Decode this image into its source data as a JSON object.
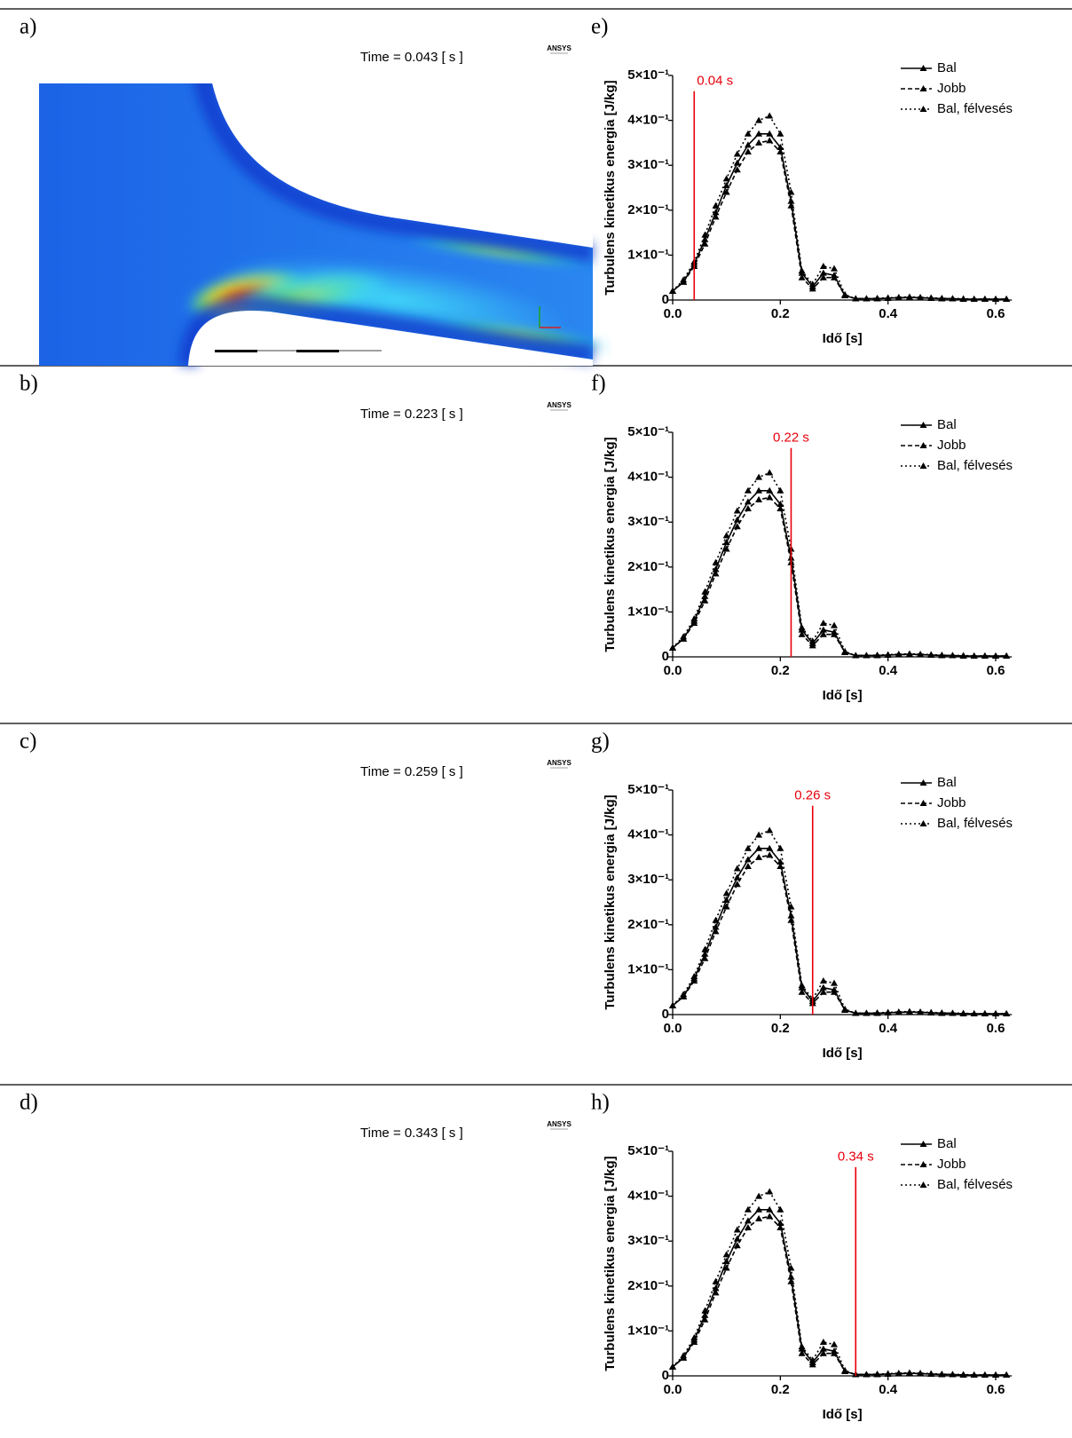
{
  "panel_labels": {
    "left": [
      "a)",
      "b)",
      "c)",
      "d)"
    ],
    "right": [
      "e)",
      "f)",
      "g)",
      "h)"
    ]
  },
  "simulations": [
    {
      "time_label": "Time = 0.043 [ s ]",
      "logo": "ANSYS"
    },
    {
      "time_label": "Time = 0.223 [ s ]",
      "logo": "ANSYS"
    },
    {
      "time_label": "Time = 0.259 [ s ]",
      "logo": "ANSYS"
    },
    {
      "time_label": "Time = 0.343 [ s ]",
      "logo": "ANSYS"
    }
  ],
  "chart_data": [
    {
      "type": "line",
      "xlabel": "Idő [s]",
      "ylabel": "Turbulens kinetikus energia [J/kg]",
      "legend": "upper right",
      "marker": "triangle",
      "xlim": [
        0,
        0.63
      ],
      "ylim": [
        0,
        0.5
      ],
      "xticks": [
        {
          "value": 0,
          "label": "0.0"
        },
        0.2,
        0.4,
        0.6
      ],
      "yticks": [
        0,
        {
          "value": 0.1,
          "label": "1×10⁻¹"
        },
        {
          "value": 0.2,
          "label": "2×10⁻¹"
        },
        {
          "value": 0.3,
          "label": "3×10⁻¹"
        },
        {
          "value": 0.4,
          "label": "4×10⁻¹"
        },
        {
          "value": 0.5,
          "label": "5×10⁻¹"
        }
      ],
      "reference_line": {
        "x": 0.04,
        "label": "0.04 s",
        "color": "#e8000b"
      },
      "x": [
        0,
        0.02,
        0.04,
        0.06,
        0.08,
        0.1,
        0.12,
        0.14,
        0.16,
        0.18,
        0.2,
        0.22,
        0.24,
        0.26,
        0.28,
        0.3,
        0.32,
        0.34,
        0.36,
        0.38,
        0.4,
        0.42,
        0.44,
        0.46,
        0.48,
        0.5,
        0.52,
        0.54,
        0.56,
        0.58,
        0.6,
        0.62
      ],
      "series": [
        {
          "name": "Bal",
          "color": "#000000",
          "style": "solid",
          "values": [
            0.02,
            0.04,
            0.08,
            0.135,
            0.195,
            0.255,
            0.305,
            0.345,
            0.37,
            0.37,
            0.34,
            0.22,
            0.06,
            0.03,
            0.06,
            0.055,
            0.01,
            0.003,
            0.003,
            0.003,
            0.004,
            0.005,
            0.006,
            0.005,
            0.004,
            0.003,
            0.003,
            0.002,
            0.002,
            0.002,
            0.002,
            0.002
          ]
        },
        {
          "name": "Jobb",
          "color": "#000000",
          "style": "dashed",
          "values": [
            0.02,
            0.04,
            0.075,
            0.125,
            0.185,
            0.24,
            0.29,
            0.33,
            0.35,
            0.355,
            0.33,
            0.21,
            0.05,
            0.025,
            0.05,
            0.05,
            0.01,
            0.003,
            0.003,
            0.003,
            0.004,
            0.005,
            0.005,
            0.005,
            0.004,
            0.003,
            0.003,
            0.002,
            0.002,
            0.002,
            0.002,
            0.002
          ]
        },
        {
          "name": "Bal, félvesés",
          "color": "#000000",
          "style": "dotted",
          "values": [
            0.02,
            0.045,
            0.085,
            0.145,
            0.21,
            0.27,
            0.325,
            0.37,
            0.4,
            0.41,
            0.37,
            0.24,
            0.065,
            0.035,
            0.075,
            0.07,
            0.012,
            0.003,
            0.003,
            0.004,
            0.005,
            0.006,
            0.007,
            0.006,
            0.005,
            0.004,
            0.003,
            0.003,
            0.002,
            0.002,
            0.002,
            0.002
          ]
        }
      ]
    },
    {
      "type": "line",
      "xlabel": "Idő [s]",
      "ylabel": "Turbulens kinetikus energia [J/kg]",
      "legend": "upper right",
      "marker": "triangle",
      "xlim": [
        0,
        0.63
      ],
      "ylim": [
        0,
        0.5
      ],
      "xticks": [
        {
          "value": 0,
          "label": "0.0"
        },
        0.2,
        0.4,
        0.6
      ],
      "yticks": [
        0,
        {
          "value": 0.1,
          "label": "1×10⁻¹"
        },
        {
          "value": 0.2,
          "label": "2×10⁻¹"
        },
        {
          "value": 0.3,
          "label": "3×10⁻¹"
        },
        {
          "value": 0.4,
          "label": "4×10⁻¹"
        },
        {
          "value": 0.5,
          "label": "5×10⁻¹"
        }
      ],
      "reference_line": {
        "x": 0.22,
        "label": "0.22 s",
        "color": "#e8000b"
      },
      "x": [
        0,
        0.02,
        0.04,
        0.06,
        0.08,
        0.1,
        0.12,
        0.14,
        0.16,
        0.18,
        0.2,
        0.22,
        0.24,
        0.26,
        0.28,
        0.3,
        0.32,
        0.34,
        0.36,
        0.38,
        0.4,
        0.42,
        0.44,
        0.46,
        0.48,
        0.5,
        0.52,
        0.54,
        0.56,
        0.58,
        0.6,
        0.62
      ],
      "series": [
        {
          "name": "Bal",
          "color": "#000000",
          "style": "solid",
          "values": [
            0.02,
            0.04,
            0.08,
            0.135,
            0.195,
            0.255,
            0.305,
            0.345,
            0.37,
            0.37,
            0.34,
            0.22,
            0.06,
            0.03,
            0.06,
            0.055,
            0.01,
            0.003,
            0.003,
            0.003,
            0.004,
            0.005,
            0.006,
            0.005,
            0.004,
            0.003,
            0.003,
            0.002,
            0.002,
            0.002,
            0.002,
            0.002
          ]
        },
        {
          "name": "Jobb",
          "color": "#000000",
          "style": "dashed",
          "values": [
            0.02,
            0.04,
            0.075,
            0.125,
            0.185,
            0.24,
            0.29,
            0.33,
            0.35,
            0.355,
            0.33,
            0.21,
            0.05,
            0.025,
            0.05,
            0.05,
            0.01,
            0.003,
            0.003,
            0.003,
            0.004,
            0.005,
            0.005,
            0.005,
            0.004,
            0.003,
            0.003,
            0.002,
            0.002,
            0.002,
            0.002,
            0.002
          ]
        },
        {
          "name": "Bal, félvesés",
          "color": "#000000",
          "style": "dotted",
          "values": [
            0.02,
            0.045,
            0.085,
            0.145,
            0.21,
            0.27,
            0.325,
            0.37,
            0.4,
            0.41,
            0.37,
            0.24,
            0.065,
            0.035,
            0.075,
            0.07,
            0.012,
            0.003,
            0.003,
            0.004,
            0.005,
            0.006,
            0.007,
            0.006,
            0.005,
            0.004,
            0.003,
            0.003,
            0.002,
            0.002,
            0.002,
            0.002
          ]
        }
      ]
    },
    {
      "type": "line",
      "xlabel": "Idő [s]",
      "ylabel": "Turbulens kinetikus energia [J/kg]",
      "legend": "upper right",
      "marker": "triangle",
      "xlim": [
        0,
        0.63
      ],
      "ylim": [
        0,
        0.5
      ],
      "xticks": [
        {
          "value": 0,
          "label": "0.0"
        },
        0.2,
        0.4,
        0.6
      ],
      "yticks": [
        0,
        {
          "value": 0.1,
          "label": "1×10⁻¹"
        },
        {
          "value": 0.2,
          "label": "2×10⁻¹"
        },
        {
          "value": 0.3,
          "label": "3×10⁻¹"
        },
        {
          "value": 0.4,
          "label": "4×10⁻¹"
        },
        {
          "value": 0.5,
          "label": "5×10⁻¹"
        }
      ],
      "reference_line": {
        "x": 0.26,
        "label": "0.26 s",
        "color": "#e8000b"
      },
      "x": [
        0,
        0.02,
        0.04,
        0.06,
        0.08,
        0.1,
        0.12,
        0.14,
        0.16,
        0.18,
        0.2,
        0.22,
        0.24,
        0.26,
        0.28,
        0.3,
        0.32,
        0.34,
        0.36,
        0.38,
        0.4,
        0.42,
        0.44,
        0.46,
        0.48,
        0.5,
        0.52,
        0.54,
        0.56,
        0.58,
        0.6,
        0.62
      ],
      "series": [
        {
          "name": "Bal",
          "color": "#000000",
          "style": "solid",
          "values": [
            0.02,
            0.04,
            0.08,
            0.135,
            0.195,
            0.255,
            0.305,
            0.345,
            0.37,
            0.37,
            0.34,
            0.22,
            0.06,
            0.03,
            0.06,
            0.055,
            0.01,
            0.003,
            0.003,
            0.003,
            0.004,
            0.005,
            0.006,
            0.005,
            0.004,
            0.003,
            0.003,
            0.002,
            0.002,
            0.002,
            0.002,
            0.002
          ]
        },
        {
          "name": "Jobb",
          "color": "#000000",
          "style": "dashed",
          "values": [
            0.02,
            0.04,
            0.075,
            0.125,
            0.185,
            0.24,
            0.29,
            0.33,
            0.35,
            0.355,
            0.33,
            0.21,
            0.05,
            0.025,
            0.05,
            0.05,
            0.01,
            0.003,
            0.003,
            0.003,
            0.004,
            0.005,
            0.005,
            0.005,
            0.004,
            0.003,
            0.003,
            0.002,
            0.002,
            0.002,
            0.002,
            0.002
          ]
        },
        {
          "name": "Bal, félvesés",
          "color": "#000000",
          "style": "dotted",
          "values": [
            0.02,
            0.045,
            0.085,
            0.145,
            0.21,
            0.27,
            0.325,
            0.37,
            0.4,
            0.41,
            0.37,
            0.24,
            0.065,
            0.035,
            0.075,
            0.07,
            0.012,
            0.003,
            0.003,
            0.004,
            0.005,
            0.006,
            0.007,
            0.006,
            0.005,
            0.004,
            0.003,
            0.003,
            0.002,
            0.002,
            0.002,
            0.002
          ]
        }
      ]
    },
    {
      "type": "line",
      "xlabel": "Idő [s]",
      "ylabel": "Turbulens kinetikus energia [J/kg]",
      "legend": "upper right",
      "marker": "triangle",
      "xlim": [
        0,
        0.63
      ],
      "ylim": [
        0,
        0.5
      ],
      "xticks": [
        {
          "value": 0,
          "label": "0.0"
        },
        0.2,
        0.4,
        0.6
      ],
      "yticks": [
        0,
        {
          "value": 0.1,
          "label": "1×10⁻¹"
        },
        {
          "value": 0.2,
          "label": "2×10⁻¹"
        },
        {
          "value": 0.3,
          "label": "3×10⁻¹"
        },
        {
          "value": 0.4,
          "label": "4×10⁻¹"
        },
        {
          "value": 0.5,
          "label": "5×10⁻¹"
        }
      ],
      "reference_line": {
        "x": 0.34,
        "label": "0.34 s",
        "color": "#e8000b"
      },
      "x": [
        0,
        0.02,
        0.04,
        0.06,
        0.08,
        0.1,
        0.12,
        0.14,
        0.16,
        0.18,
        0.2,
        0.22,
        0.24,
        0.26,
        0.28,
        0.3,
        0.32,
        0.34,
        0.36,
        0.38,
        0.4,
        0.42,
        0.44,
        0.46,
        0.48,
        0.5,
        0.52,
        0.54,
        0.56,
        0.58,
        0.6,
        0.62
      ],
      "series": [
        {
          "name": "Bal",
          "color": "#000000",
          "style": "solid",
          "values": [
            0.02,
            0.04,
            0.08,
            0.135,
            0.195,
            0.255,
            0.305,
            0.345,
            0.37,
            0.37,
            0.34,
            0.22,
            0.06,
            0.03,
            0.06,
            0.055,
            0.01,
            0.003,
            0.003,
            0.003,
            0.004,
            0.005,
            0.006,
            0.005,
            0.004,
            0.003,
            0.003,
            0.002,
            0.002,
            0.002,
            0.002,
            0.002
          ]
        },
        {
          "name": "Jobb",
          "color": "#000000",
          "style": "dashed",
          "values": [
            0.02,
            0.04,
            0.075,
            0.125,
            0.185,
            0.24,
            0.29,
            0.33,
            0.35,
            0.355,
            0.33,
            0.21,
            0.05,
            0.025,
            0.05,
            0.05,
            0.01,
            0.003,
            0.003,
            0.003,
            0.004,
            0.005,
            0.005,
            0.005,
            0.004,
            0.003,
            0.003,
            0.002,
            0.002,
            0.002,
            0.002,
            0.002
          ]
        },
        {
          "name": "Bal, félvesés",
          "color": "#000000",
          "style": "dotted",
          "values": [
            0.02,
            0.045,
            0.085,
            0.145,
            0.21,
            0.27,
            0.325,
            0.37,
            0.4,
            0.41,
            0.37,
            0.24,
            0.065,
            0.035,
            0.075,
            0.07,
            0.012,
            0.003,
            0.003,
            0.004,
            0.005,
            0.006,
            0.007,
            0.006,
            0.005,
            0.004,
            0.003,
            0.003,
            0.002,
            0.002,
            0.002,
            0.002
          ]
        }
      ]
    }
  ]
}
